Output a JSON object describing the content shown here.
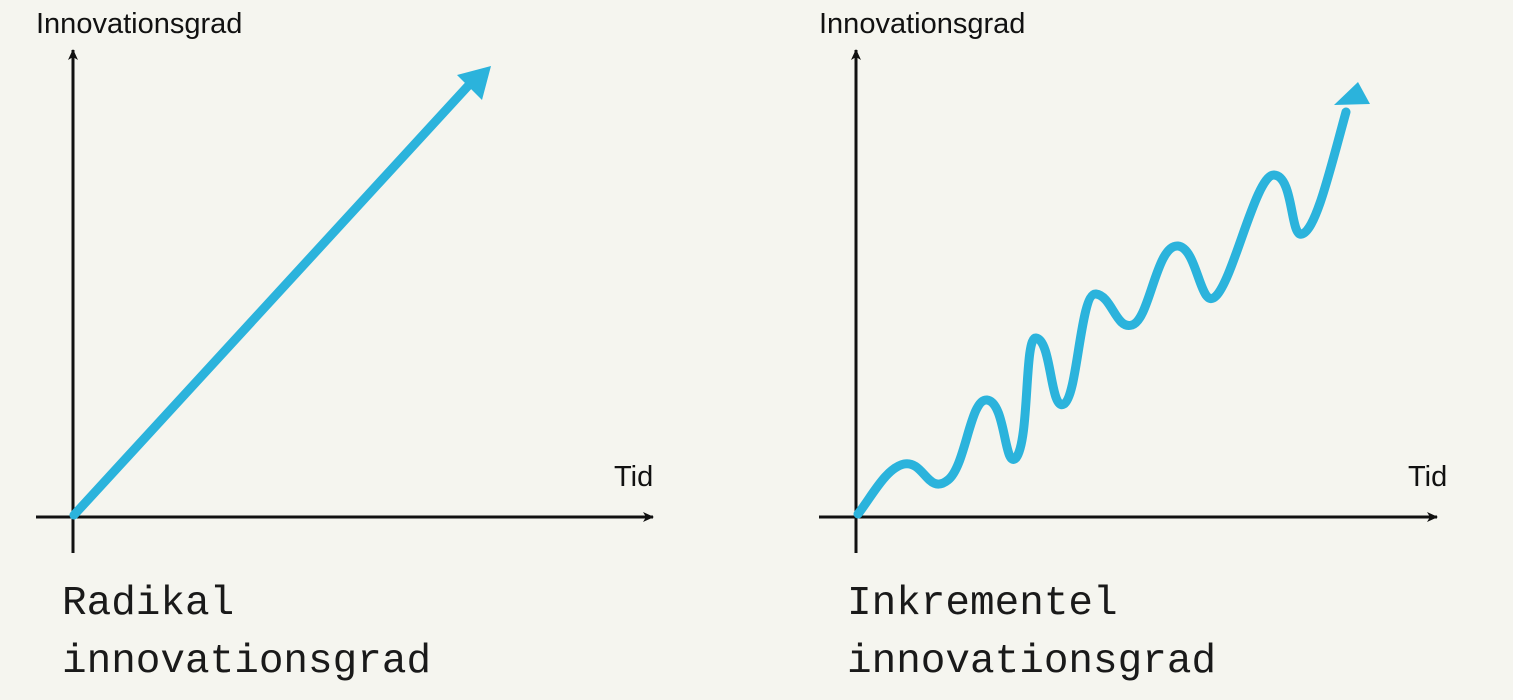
{
  "colors": {
    "background": "#f5f5ef",
    "axis": "#111111",
    "line": "#2bb3dc",
    "text": "#111111"
  },
  "panels": [
    {
      "id": "radikal",
      "y_axis_label": "Innovationsgrad",
      "x_axis_label": "Tid",
      "curve": "straight-diagonal-arrow",
      "caption_line1": "Radikal",
      "caption_line2": "innovationsgrad"
    },
    {
      "id": "inkrementel",
      "y_axis_label": "Innovationsgrad",
      "x_axis_label": "Tid",
      "curve": "wavy-rising-arrow",
      "caption_line1": "Inkrementel",
      "caption_line2": "innovationsgrad"
    }
  ]
}
